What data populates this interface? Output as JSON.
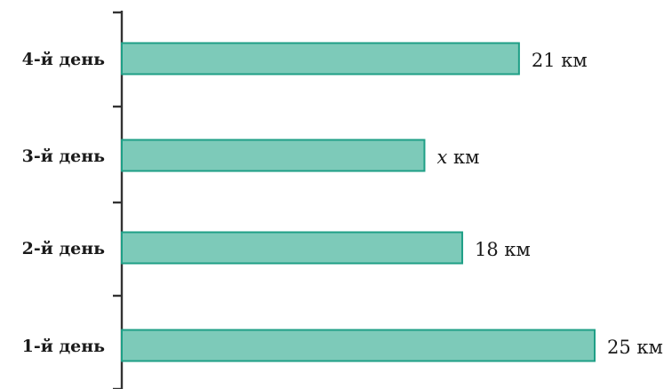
{
  "chart_data": {
    "type": "bar",
    "orientation": "horizontal",
    "categories": [
      "4-й день",
      "3-й день",
      "2-й день",
      "1-й день"
    ],
    "values": [
      21,
      16,
      18,
      25
    ],
    "value_labels": [
      "21 км",
      "x км",
      "18 км",
      "25 км"
    ],
    "xlim": [
      0,
      25
    ],
    "grid": false,
    "legend": "none",
    "bar_fill": "#7dcab9",
    "bar_stroke": "#1e9f86"
  }
}
